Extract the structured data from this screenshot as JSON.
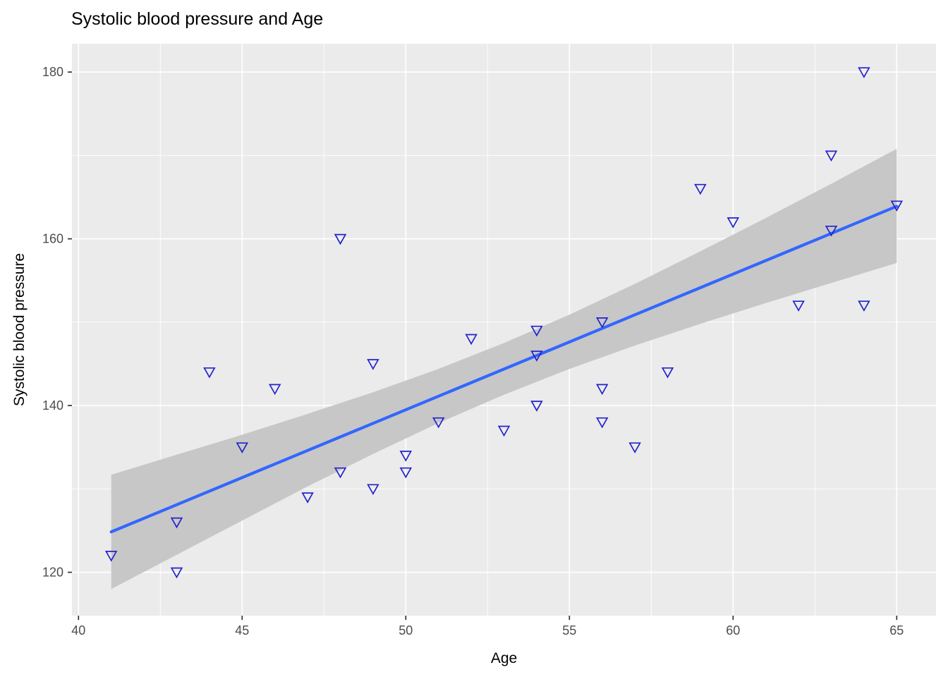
{
  "chart_data": {
    "type": "scatter",
    "title": "Systolic blood pressure and Age",
    "xlabel": "Age",
    "ylabel": "Systolic blood pressure",
    "x_ticks": [
      40,
      45,
      50,
      55,
      60,
      65
    ],
    "x_minor_ticks": [
      42.5,
      47.5,
      52.5,
      57.5,
      62.5
    ],
    "y_ticks": [
      120,
      140,
      160,
      180
    ],
    "y_minor_ticks": [
      130,
      150,
      170
    ],
    "xlim": [
      39.8,
      66.2
    ],
    "ylim": [
      114.8,
      183.4
    ],
    "grid": "on",
    "legend": "none",
    "points_style": "open-triangle-down",
    "points": [
      [
        41,
        122
      ],
      [
        43,
        120
      ],
      [
        43,
        126
      ],
      [
        44,
        144
      ],
      [
        45,
        135
      ],
      [
        46,
        142
      ],
      [
        47,
        129
      ],
      [
        48,
        132
      ],
      [
        48,
        160
      ],
      [
        49,
        130
      ],
      [
        49,
        145
      ],
      [
        50,
        132
      ],
      [
        50,
        134
      ],
      [
        51,
        138
      ],
      [
        52,
        148
      ],
      [
        53,
        137
      ],
      [
        54,
        140
      ],
      [
        54,
        146
      ],
      [
        54,
        149
      ],
      [
        56,
        138
      ],
      [
        56,
        142
      ],
      [
        56,
        150
      ],
      [
        57,
        135
      ],
      [
        58,
        144
      ],
      [
        59,
        166
      ],
      [
        60,
        162
      ],
      [
        62,
        152
      ],
      [
        63,
        161
      ],
      [
        63,
        170
      ],
      [
        64,
        152
      ],
      [
        64,
        180
      ],
      [
        65,
        164
      ]
    ],
    "trend_line": {
      "type": "linear",
      "x_start": 41,
      "y_start": 124.85,
      "x_end": 65,
      "y_end": 163.9
    },
    "ci_band": [
      [
        41,
        118.0,
        131.7
      ],
      [
        43,
        122.1,
        134.1
      ],
      [
        45,
        126.2,
        136.5
      ],
      [
        47,
        130.3,
        139.0
      ],
      [
        49,
        134.2,
        141.6
      ],
      [
        51,
        137.9,
        144.4
      ],
      [
        53,
        141.3,
        147.5
      ],
      [
        55,
        144.4,
        150.9
      ],
      [
        57,
        147.2,
        154.6
      ],
      [
        59,
        149.8,
        158.5
      ],
      [
        61,
        152.3,
        162.5
      ],
      [
        63,
        154.7,
        166.6
      ],
      [
        65,
        157.1,
        170.8
      ]
    ],
    "colors": {
      "background": "#FFFFFF",
      "panel": "#EBEBEB",
      "grid": "#FFFFFF",
      "band": "#C7C7C7",
      "line": "#3366FF",
      "point": "#2323CC",
      "axis_text": "#4D4D4D",
      "axis_title": "#000000",
      "tick_mark": "#333333",
      "title": "#000000"
    }
  }
}
